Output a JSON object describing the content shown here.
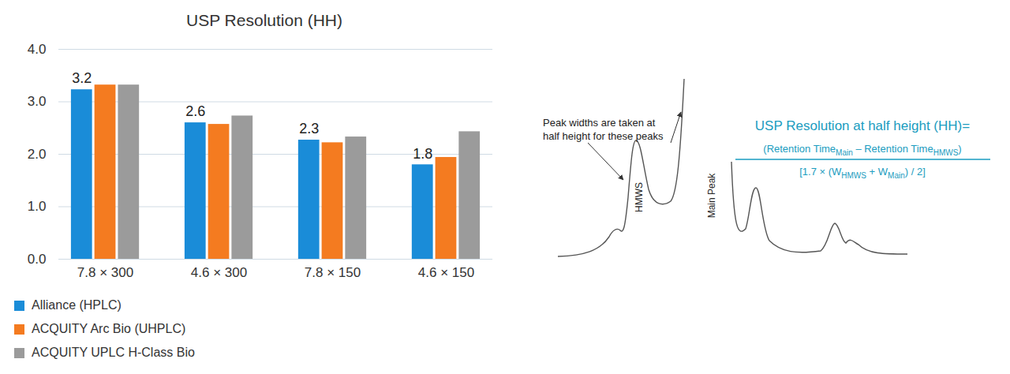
{
  "chart_data": {
    "type": "bar",
    "title": "USP Resolution (HH)",
    "categories": [
      "7.8 × 300",
      "4.6 × 300",
      "7.8 × 150",
      "4.6 × 150"
    ],
    "series": [
      {
        "name": "Alliance (HPLC)",
        "color": "#1a8cd8",
        "values": [
          3.23,
          2.6,
          2.27,
          1.8
        ],
        "value_labels": [
          "3.2",
          "2.6",
          "2.3",
          "1.8"
        ]
      },
      {
        "name": "ACQUITY Arc Bio (UHPLC)",
        "color": "#f47b20",
        "values": [
          3.32,
          2.57,
          2.22,
          1.94
        ]
      },
      {
        "name": "ACQUITY UPLC H-Class Bio",
        "color": "#9b9b9b",
        "values": [
          3.32,
          2.73,
          2.33,
          2.43
        ]
      }
    ],
    "ylim": [
      0,
      4
    ],
    "yticks": [
      {
        "value": 0,
        "label": "0.0"
      },
      {
        "value": 1,
        "label": "1.0"
      },
      {
        "value": 2,
        "label": "2.0"
      },
      {
        "value": 3,
        "label": "3.0"
      },
      {
        "value": 4,
        "label": "4.0"
      }
    ],
    "grid": true,
    "data_labels": true,
    "legend": "bottom-left"
  },
  "diagram": {
    "annotation": [
      "Peak widths are taken at",
      "half height for these peaks"
    ],
    "peak_labels": [
      "HMWS",
      "Main Peak"
    ],
    "formula": {
      "title": "USP Resolution at half height (HH)=",
      "numerator": [
        "(Retention Time",
        "Main",
        " – Retention Time",
        "HMWS",
        ")"
      ],
      "denominator": [
        "[1.7 × (W",
        "HMWS",
        " + W",
        "Main",
        ") / 2]"
      ]
    }
  }
}
